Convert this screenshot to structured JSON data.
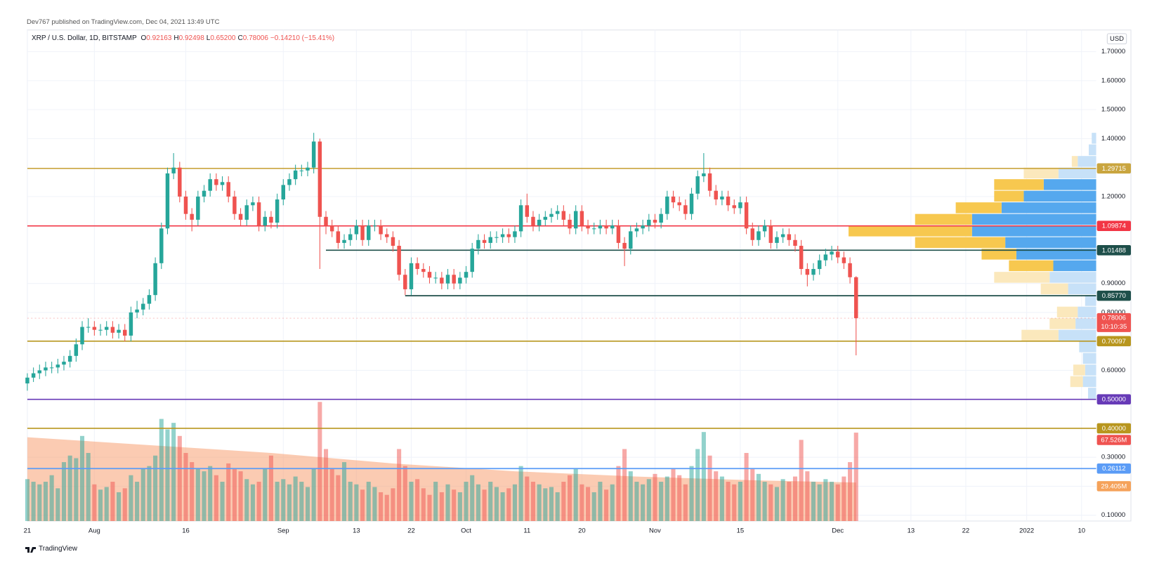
{
  "header": {
    "published": "Dev767 published on TradingView.com, Dec 04, 2021 13:49 UTC",
    "currency": "USD",
    "footer": "TradingView"
  },
  "legend": {
    "symbol": "XRP / U.S. Dollar, 1D, BITSTAMP",
    "fields": [
      {
        "key": "O",
        "value": "0.92163"
      },
      {
        "key": "H",
        "value": "0.92498"
      },
      {
        "key": "L",
        "value": "0.65200"
      },
      {
        "key": "C",
        "value": "0.78006"
      }
    ],
    "change": "−0.14210 (−15.41%)"
  },
  "chart_data": {
    "type": "candlestick",
    "up_color": "#26a69a",
    "down_color": "#ef5350",
    "xlim": [
      0,
      175.4
    ],
    "ylim": [
      0.08,
      1.775
    ],
    "grid": true,
    "xticks": [
      {
        "value": 0,
        "label": "21"
      },
      {
        "value": 11,
        "label": "Aug"
      },
      {
        "value": 26,
        "label": "16"
      },
      {
        "value": 42,
        "label": "Sep"
      },
      {
        "value": 54,
        "label": "13"
      },
      {
        "value": 63,
        "label": "22"
      },
      {
        "value": 72,
        "label": "Oct"
      },
      {
        "value": 82,
        "label": "11"
      },
      {
        "value": 91,
        "label": "20"
      },
      {
        "value": 103,
        "label": "Nov"
      },
      {
        "value": 117,
        "label": "15"
      },
      {
        "value": 133,
        "label": "Dec"
      },
      {
        "value": 145,
        "label": "13"
      },
      {
        "value": 154,
        "label": "22"
      },
      {
        "value": 164,
        "label": "2022"
      },
      {
        "value": 173,
        "label": "10"
      }
    ],
    "yticks": [
      {
        "value": 1.7,
        "label": "1.70000"
      },
      {
        "value": 1.6,
        "label": "1.60000"
      },
      {
        "value": 1.5,
        "label": "1.50000"
      },
      {
        "value": 1.4,
        "label": "1.40000"
      },
      {
        "value": 1.2,
        "label": "1.20000"
      },
      {
        "value": 0.9,
        "label": "0.90000"
      },
      {
        "value": 0.8,
        "label": "0.80000"
      },
      {
        "value": 0.6,
        "label": "0.60000"
      },
      {
        "value": 0.3,
        "label": "0.30000"
      },
      {
        "value": 0.2,
        "label": "0.20000"
      },
      {
        "value": 0.1,
        "label": "0.10000"
      }
    ],
    "candles": [
      [
        0.555,
        0.59,
        0.53,
        0.575
      ],
      [
        0.575,
        0.61,
        0.56,
        0.59
      ],
      [
        0.59,
        0.62,
        0.57,
        0.6
      ],
      [
        0.6,
        0.63,
        0.58,
        0.61
      ],
      [
        0.61,
        0.63,
        0.59,
        0.61
      ],
      [
        0.61,
        0.64,
        0.59,
        0.62
      ],
      [
        0.62,
        0.65,
        0.6,
        0.63
      ],
      [
        0.63,
        0.67,
        0.61,
        0.65
      ],
      [
        0.65,
        0.71,
        0.63,
        0.69
      ],
      [
        0.69,
        0.77,
        0.67,
        0.75
      ],
      [
        0.75,
        0.78,
        0.73,
        0.75
      ],
      [
        0.75,
        0.77,
        0.72,
        0.74
      ],
      [
        0.74,
        0.76,
        0.72,
        0.74
      ],
      [
        0.74,
        0.77,
        0.72,
        0.75
      ],
      [
        0.75,
        0.77,
        0.71,
        0.73
      ],
      [
        0.73,
        0.76,
        0.71,
        0.74
      ],
      [
        0.74,
        0.76,
        0.7,
        0.72
      ],
      [
        0.72,
        0.82,
        0.7,
        0.8
      ],
      [
        0.8,
        0.84,
        0.78,
        0.81
      ],
      [
        0.81,
        0.85,
        0.79,
        0.83
      ],
      [
        0.83,
        0.88,
        0.81,
        0.86
      ],
      [
        0.86,
        0.99,
        0.84,
        0.97
      ],
      [
        0.97,
        1.11,
        0.95,
        1.09
      ],
      [
        1.09,
        1.3,
        1.07,
        1.28
      ],
      [
        1.28,
        1.35,
        1.26,
        1.3
      ],
      [
        1.3,
        1.32,
        1.18,
        1.2
      ],
      [
        1.2,
        1.22,
        1.12,
        1.14
      ],
      [
        1.14,
        1.16,
        1.08,
        1.12
      ],
      [
        1.12,
        1.22,
        1.1,
        1.2
      ],
      [
        1.2,
        1.24,
        1.18,
        1.22
      ],
      [
        1.22,
        1.28,
        1.2,
        1.26
      ],
      [
        1.26,
        1.28,
        1.22,
        1.24
      ],
      [
        1.24,
        1.27,
        1.22,
        1.25
      ],
      [
        1.25,
        1.27,
        1.18,
        1.2
      ],
      [
        1.2,
        1.22,
        1.12,
        1.14
      ],
      [
        1.14,
        1.16,
        1.1,
        1.12
      ],
      [
        1.12,
        1.19,
        1.1,
        1.17
      ],
      [
        1.17,
        1.2,
        1.15,
        1.18
      ],
      [
        1.18,
        1.2,
        1.08,
        1.1
      ],
      [
        1.1,
        1.15,
        1.08,
        1.13
      ],
      [
        1.13,
        1.15,
        1.09,
        1.11
      ],
      [
        1.11,
        1.21,
        1.09,
        1.19
      ],
      [
        1.19,
        1.26,
        1.17,
        1.24
      ],
      [
        1.24,
        1.28,
        1.22,
        1.26
      ],
      [
        1.26,
        1.31,
        1.24,
        1.29
      ],
      [
        1.29,
        1.31,
        1.27,
        1.29
      ],
      [
        1.29,
        1.32,
        1.27,
        1.3
      ],
      [
        1.3,
        1.42,
        1.28,
        1.39
      ],
      [
        1.39,
        1.4,
        0.95,
        1.13
      ],
      [
        1.13,
        1.15,
        1.07,
        1.1
      ],
      [
        1.1,
        1.12,
        1.06,
        1.08
      ],
      [
        1.08,
        1.1,
        1.02,
        1.04
      ],
      [
        1.04,
        1.07,
        1.02,
        1.05
      ],
      [
        1.05,
        1.09,
        1.03,
        1.07
      ],
      [
        1.07,
        1.12,
        1.05,
        1.1
      ],
      [
        1.1,
        1.12,
        1.03,
        1.05
      ],
      [
        1.05,
        1.12,
        1.03,
        1.1
      ],
      [
        1.1,
        1.12,
        1.08,
        1.1
      ],
      [
        1.1,
        1.12,
        1.05,
        1.07
      ],
      [
        1.07,
        1.09,
        1.04,
        1.06
      ],
      [
        1.06,
        1.08,
        1.01,
        1.03
      ],
      [
        1.03,
        1.05,
        0.91,
        0.93
      ],
      [
        0.93,
        0.95,
        0.86,
        0.88
      ],
      [
        0.88,
        0.99,
        0.86,
        0.97
      ],
      [
        0.97,
        0.99,
        0.93,
        0.95
      ],
      [
        0.95,
        0.97,
        0.92,
        0.94
      ],
      [
        0.94,
        0.96,
        0.9,
        0.92
      ],
      [
        0.92,
        0.94,
        0.9,
        0.92
      ],
      [
        0.92,
        0.94,
        0.88,
        0.9
      ],
      [
        0.9,
        0.95,
        0.88,
        0.93
      ],
      [
        0.93,
        0.95,
        0.88,
        0.9
      ],
      [
        0.9,
        0.94,
        0.88,
        0.92
      ],
      [
        0.92,
        0.96,
        0.9,
        0.94
      ],
      [
        0.94,
        1.04,
        0.92,
        1.02
      ],
      [
        1.02,
        1.07,
        1.0,
        1.05
      ],
      [
        1.05,
        1.07,
        1.02,
        1.04
      ],
      [
        1.04,
        1.08,
        1.02,
        1.06
      ],
      [
        1.06,
        1.08,
        1.04,
        1.06
      ],
      [
        1.06,
        1.09,
        1.04,
        1.07
      ],
      [
        1.07,
        1.09,
        1.04,
        1.06
      ],
      [
        1.06,
        1.1,
        1.04,
        1.08
      ],
      [
        1.08,
        1.19,
        1.06,
        1.17
      ],
      [
        1.17,
        1.21,
        1.11,
        1.13
      ],
      [
        1.13,
        1.15,
        1.08,
        1.1
      ],
      [
        1.1,
        1.14,
        1.08,
        1.12
      ],
      [
        1.12,
        1.15,
        1.1,
        1.13
      ],
      [
        1.13,
        1.16,
        1.11,
        1.14
      ],
      [
        1.14,
        1.17,
        1.12,
        1.15
      ],
      [
        1.15,
        1.17,
        1.1,
        1.12
      ],
      [
        1.12,
        1.14,
        1.07,
        1.09
      ],
      [
        1.09,
        1.17,
        1.07,
        1.15
      ],
      [
        1.15,
        1.17,
        1.08,
        1.1
      ],
      [
        1.1,
        1.12,
        1.07,
        1.09
      ],
      [
        1.09,
        1.11,
        1.07,
        1.09
      ],
      [
        1.09,
        1.12,
        1.07,
        1.1
      ],
      [
        1.1,
        1.12,
        1.07,
        1.09
      ],
      [
        1.09,
        1.12,
        1.07,
        1.1
      ],
      [
        1.1,
        1.12,
        1.02,
        1.04
      ],
      [
        1.04,
        1.06,
        0.96,
        1.02
      ],
      [
        1.02,
        1.1,
        1.0,
        1.08
      ],
      [
        1.08,
        1.11,
        1.06,
        1.09
      ],
      [
        1.09,
        1.12,
        1.07,
        1.1
      ],
      [
        1.1,
        1.14,
        1.08,
        1.12
      ],
      [
        1.12,
        1.14,
        1.09,
        1.11
      ],
      [
        1.11,
        1.16,
        1.09,
        1.14
      ],
      [
        1.14,
        1.22,
        1.12,
        1.2
      ],
      [
        1.2,
        1.22,
        1.16,
        1.18
      ],
      [
        1.18,
        1.2,
        1.15,
        1.17
      ],
      [
        1.17,
        1.19,
        1.12,
        1.14
      ],
      [
        1.14,
        1.23,
        1.12,
        1.21
      ],
      [
        1.21,
        1.29,
        1.19,
        1.27
      ],
      [
        1.27,
        1.35,
        1.25,
        1.28
      ],
      [
        1.28,
        1.3,
        1.2,
        1.22
      ],
      [
        1.22,
        1.24,
        1.17,
        1.19
      ],
      [
        1.19,
        1.22,
        1.17,
        1.2
      ],
      [
        1.2,
        1.22,
        1.15,
        1.17
      ],
      [
        1.17,
        1.19,
        1.14,
        1.16
      ],
      [
        1.16,
        1.2,
        1.14,
        1.18
      ],
      [
        1.18,
        1.2,
        1.07,
        1.09
      ],
      [
        1.09,
        1.11,
        1.03,
        1.05
      ],
      [
        1.05,
        1.1,
        1.03,
        1.08
      ],
      [
        1.08,
        1.12,
        1.06,
        1.1
      ],
      [
        1.1,
        1.12,
        1.02,
        1.04
      ],
      [
        1.04,
        1.08,
        1.02,
        1.06
      ],
      [
        1.06,
        1.09,
        1.04,
        1.07
      ],
      [
        1.07,
        1.09,
        1.03,
        1.05
      ],
      [
        1.05,
        1.07,
        1.01,
        1.03
      ],
      [
        1.03,
        1.05,
        0.93,
        0.95
      ],
      [
        0.95,
        0.97,
        0.89,
        0.93
      ],
      [
        0.93,
        0.97,
        0.91,
        0.95
      ],
      [
        0.95,
        1.0,
        0.93,
        0.98
      ],
      [
        0.98,
        1.02,
        0.96,
        1.0
      ],
      [
        1.0,
        1.03,
        0.98,
        1.01
      ],
      [
        1.01,
        1.03,
        0.97,
        0.99
      ],
      [
        0.99,
        1.01,
        0.95,
        0.97
      ],
      [
        0.97,
        0.99,
        0.9,
        0.92163
      ],
      [
        0.92163,
        0.92498,
        0.652,
        0.78006
      ]
    ],
    "volume": [
      32,
      30,
      28,
      30,
      35,
      25,
      45,
      50,
      48,
      65,
      52,
      28,
      24,
      26,
      30,
      22,
      25,
      35,
      30,
      40,
      42,
      50,
      78,
      70,
      75,
      65,
      52,
      45,
      40,
      38,
      42,
      35,
      30,
      44,
      40,
      38,
      32,
      28,
      30,
      40,
      50,
      30,
      32,
      28,
      34,
      30,
      26,
      40,
      91,
      55,
      40,
      35,
      45,
      30,
      28,
      24,
      30,
      26,
      22,
      20,
      25,
      55,
      42,
      30,
      32,
      25,
      20,
      30,
      22,
      28,
      24,
      22,
      30,
      35,
      28,
      24,
      30,
      26,
      22,
      25,
      28,
      42,
      34,
      30,
      28,
      25,
      26,
      22,
      30,
      35,
      40,
      28,
      26,
      22,
      30,
      24,
      28,
      42,
      55,
      38,
      30,
      28,
      32,
      36,
      30,
      34,
      40,
      35,
      28,
      42,
      55,
      68,
      50,
      38,
      34,
      30,
      28,
      30,
      52,
      40,
      36,
      30,
      28,
      26,
      32,
      30,
      34,
      62,
      38,
      30,
      28,
      32,
      30,
      28,
      34,
      45,
      67.526
    ],
    "volume_last_label": "67.526M",
    "volume_ylim": [
      0,
      100
    ],
    "volume_ma": {
      "x": [
        0,
        20,
        40,
        60,
        80,
        100,
        120,
        136
      ],
      "values": [
        64,
        58,
        52,
        44,
        38,
        34,
        31,
        29.405
      ],
      "last_label": "29.405M",
      "color": "#f7a072"
    },
    "price_lines": [
      {
        "value": 1.29715,
        "label": "1.29715",
        "color": "#c9a53f"
      },
      {
        "value": 1.09874,
        "label": "1.09874",
        "color": "#f23645"
      },
      {
        "value": 1.01488,
        "label": "1.01488",
        "color": "#1e4f4a",
        "x_start": 49
      },
      {
        "value": 0.8577,
        "label": "0.85770",
        "color": "#1e4f4a",
        "x_start": 62
      },
      {
        "value": 0.70097,
        "label": "0.70097",
        "color": "#b8961e"
      },
      {
        "value": 0.5,
        "label": "0.50000",
        "color": "#673ab7"
      },
      {
        "value": 0.4,
        "label": "0.40000",
        "color": "#b8961e"
      },
      {
        "value": 0.26112,
        "label": "0.26112",
        "color": "#5b9cf6"
      }
    ],
    "last_price": {
      "value": 0.78006,
      "label": "0.78006",
      "countdown": "10:10:35",
      "color": "#ef5350"
    },
    "volume_profile": {
      "row_height": 0.04,
      "xlim": [
        0,
        340
      ],
      "colors": {
        "up": "#55a8ee",
        "down": "#f7c84f",
        "up_out": "#c7e1f8",
        "down_out": "#fbe8bc"
      },
      "prices": [
        1.4,
        1.36,
        1.32,
        1.28,
        1.24,
        1.2,
        1.16,
        1.12,
        1.08,
        1.04,
        1.0,
        0.96,
        0.92,
        0.88,
        0.84,
        0.8,
        0.76,
        0.72,
        0.68,
        0.64,
        0.6,
        0.56,
        0.52
      ],
      "up": [
        6,
        10,
        25,
        51,
        71,
        98,
        128,
        168,
        168,
        123,
        108,
        58,
        63,
        38,
        15,
        25,
        28,
        51,
        23,
        18,
        15,
        18,
        11
      ],
      "down": [
        0,
        0,
        8,
        47,
        67,
        40,
        62,
        77,
        167,
        122,
        47,
        60,
        75,
        37,
        0,
        28,
        35,
        50,
        0,
        0,
        16,
        17,
        0
      ],
      "value_area": [
        false,
        false,
        false,
        false,
        true,
        true,
        true,
        true,
        true,
        true,
        true,
        true,
        false,
        false,
        false,
        false,
        false,
        false,
        false,
        false,
        false,
        false,
        false
      ]
    }
  }
}
